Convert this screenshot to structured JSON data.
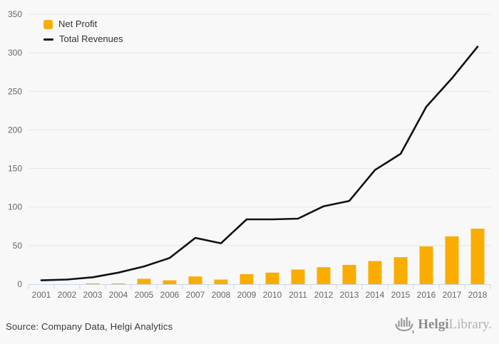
{
  "chart_data": {
    "type": "bar",
    "combo": "bar+line",
    "title": "",
    "categories": [
      "2001",
      "2002",
      "2003",
      "2004",
      "2005",
      "2006",
      "2007",
      "2008",
      "2009",
      "2010",
      "2011",
      "2012",
      "2013",
      "2014",
      "2015",
      "2016",
      "2017",
      "2018"
    ],
    "series": [
      {
        "name": "Net Profit",
        "type": "bar",
        "color": "#FAAD00",
        "values": [
          0,
          0,
          1,
          1,
          7,
          5,
          10,
          6,
          13,
          15,
          19,
          22,
          25,
          30,
          35,
          49,
          62,
          72
        ]
      },
      {
        "name": "Total Revenues",
        "type": "line",
        "color": "#111111",
        "values": [
          5,
          6,
          9,
          15,
          23,
          34,
          60,
          53,
          84,
          84,
          85,
          101,
          108,
          148,
          169,
          230,
          267,
          308
        ]
      }
    ],
    "xlabel": "",
    "ylabel": "",
    "ylim": [
      0,
      350
    ],
    "y_tick_labels": [
      0,
      50,
      100,
      150,
      200,
      250,
      300,
      350
    ],
    "grid": true,
    "legend_position": "top-left"
  },
  "colors": {
    "background": "#f8f8f8",
    "gridline": "#e6e6e6",
    "axis_line": "#ccd6eb",
    "tick_label": "#666666",
    "legend_text": "#333333",
    "bar_accent": "#FAAD00",
    "line_series": "#111111"
  },
  "footer": {
    "source_text": "Source: Company Data, Helgi Analytics",
    "logo": {
      "brand_primary": "Helgi",
      "brand_secondary": "Library."
    }
  }
}
